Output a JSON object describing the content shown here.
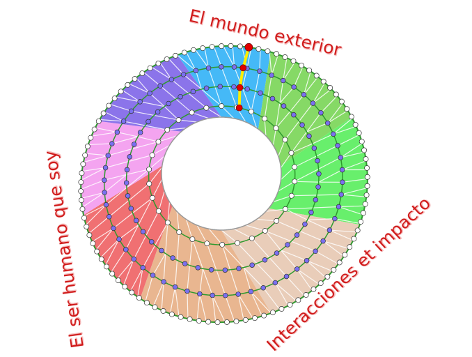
{
  "labels": {
    "top": "El mundo exterior",
    "left": "El ser humano que soy",
    "right": "Interacciones et impacto"
  },
  "sectors": [
    {
      "name": "blue",
      "color": "#45b9f7"
    },
    {
      "name": "dark-green",
      "color": "#86d966"
    },
    {
      "name": "green",
      "color": "#68ef6c"
    },
    {
      "name": "beige",
      "color": "#e9cdb9"
    },
    {
      "name": "orange",
      "color": "#e9b690"
    },
    {
      "name": "red",
      "color": "#f07072"
    },
    {
      "name": "pink",
      "color": "#f4a4f0"
    },
    {
      "name": "purple",
      "color": "#8b74ea"
    }
  ],
  "colors": {
    "ring": "#2e9a2e",
    "node_inner": "#7a70f0",
    "node_outer": "#ffffff",
    "path": "#ffee00",
    "path_node": "#e00000",
    "label": "#d01818"
  }
}
